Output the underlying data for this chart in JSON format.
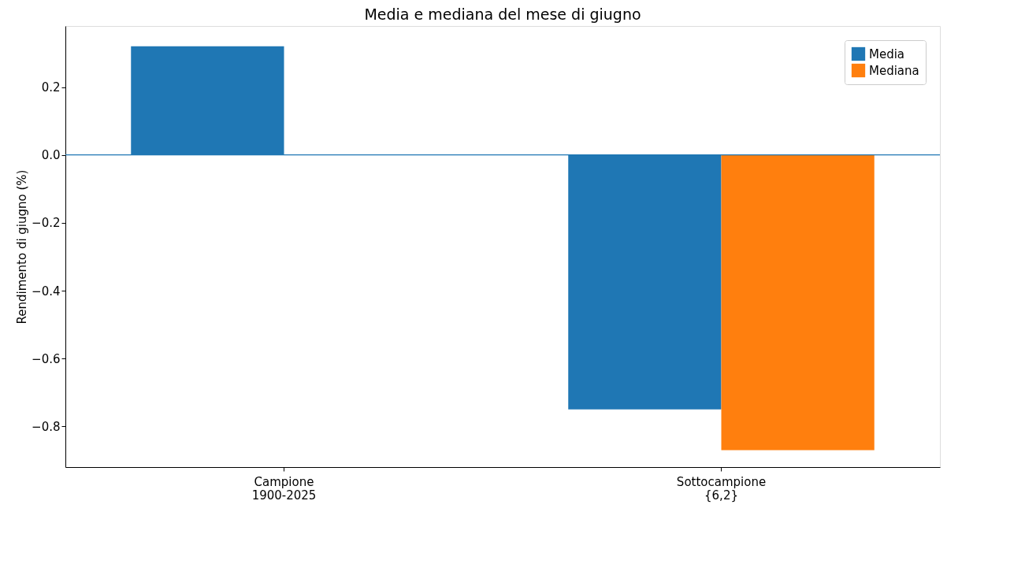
{
  "chart_data": {
    "type": "bar",
    "title": "Media e mediana del mese di giugno",
    "ylabel": "Rendimento di giugno (%)",
    "categories": [
      "Campione\n1900-2025",
      "Sottocampione\n{6,2}"
    ],
    "series": [
      {
        "name": "Media",
        "color": "#1f77b4",
        "values": [
          0.32,
          -0.75
        ]
      },
      {
        "name": "Mediana",
        "color": "#ff7f0e",
        "values": [
          null,
          -0.87
        ]
      }
    ],
    "ylim": [
      -0.92,
      0.38
    ],
    "yticks": [
      {
        "value": -0.8,
        "label": "−0.8"
      },
      {
        "value": -0.6,
        "label": "−0.6"
      },
      {
        "value": -0.4,
        "label": "−0.4"
      },
      {
        "value": -0.2,
        "label": "−0.2"
      },
      {
        "value": 0,
        "label": "0.0"
      },
      {
        "value": 0.2,
        "label": "0.2"
      }
    ],
    "ref_lines": [
      {
        "axis": "y",
        "value": 0,
        "color": "#1f77b4"
      }
    ],
    "grid": false,
    "legend": "top right"
  }
}
